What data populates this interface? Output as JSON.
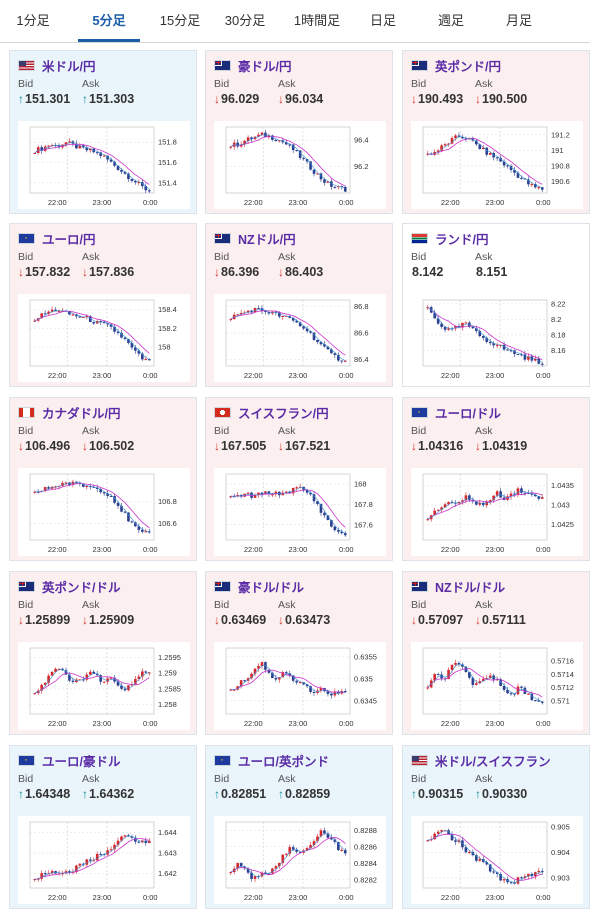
{
  "tabs": [
    {
      "label": "1分足",
      "active": false
    },
    {
      "label": "5分足",
      "active": true
    },
    {
      "label": "15分足",
      "active": false
    },
    {
      "label": "30分足",
      "active": false
    },
    {
      "label": "1時間足",
      "active": false
    },
    {
      "label": "日足",
      "active": false
    },
    {
      "label": "週足",
      "active": false
    },
    {
      "label": "月足",
      "active": false
    }
  ],
  "bid_label": "Bid",
  "ask_label": "Ask",
  "colors": {
    "up_bg": "#e9f4fb",
    "down_bg": "#fcefef",
    "pair_text": "#5b2ca6",
    "up_arrow": "#1a8c9c",
    "down_arrow": "#d8332e",
    "candle_up": "#d6262c",
    "candle_down": "#2a3f8f",
    "ma_line": "#cc33cc"
  },
  "cards": [
    {
      "pair": "米ドル/円",
      "flag": "us-flag",
      "state": "up",
      "bid": "151.301",
      "ask": "151.303",
      "bid_arrow": "↑",
      "ask_arrow": "↑",
      "chart_data": {
        "type": "candlestick",
        "x_ticks": [
          "22:00",
          "23:00",
          "0:00"
        ],
        "y_ticks": [
          "151.8",
          "151.6",
          "151.4"
        ],
        "ylim": [
          151.3,
          151.95
        ],
        "trend": [
          151.72,
          151.74,
          151.78,
          151.76,
          151.8,
          151.77,
          151.74,
          151.72,
          151.7,
          151.66,
          151.6,
          151.54,
          151.48,
          151.42,
          151.36,
          151.32
        ]
      }
    },
    {
      "pair": "豪ドル/円",
      "flag": "au-flag",
      "state": "down",
      "bid": "96.029",
      "ask": "96.034",
      "bid_arrow": "↓",
      "ask_arrow": "↓",
      "chart_data": {
        "type": "candlestick",
        "x_ticks": [
          "22:00",
          "23:00",
          "0:00"
        ],
        "y_ticks": [
          "96.4",
          "96.2"
        ],
        "ylim": [
          96.0,
          96.5
        ],
        "trend": [
          96.36,
          96.37,
          96.4,
          96.42,
          96.44,
          96.43,
          96.41,
          96.38,
          96.34,
          96.28,
          96.22,
          96.16,
          96.1,
          96.06,
          96.04,
          96.03
        ]
      }
    },
    {
      "pair": "英ポンド/円",
      "flag": "uk-flag",
      "state": "down",
      "bid": "190.493",
      "ask": "190.500",
      "bid_arrow": "↓",
      "ask_arrow": "↓",
      "chart_data": {
        "type": "candlestick",
        "x_ticks": [
          "22:00",
          "23:00",
          "0:00"
        ],
        "y_ticks": [
          "191.2",
          "191",
          "190.8",
          "190.6"
        ],
        "ylim": [
          190.45,
          191.3
        ],
        "trend": [
          190.95,
          190.98,
          191.05,
          191.12,
          191.18,
          191.16,
          191.1,
          191.02,
          190.95,
          190.9,
          190.82,
          190.74,
          190.66,
          190.58,
          190.52,
          190.5
        ]
      }
    },
    {
      "pair": "ユーロ/円",
      "flag": "eu-flag",
      "state": "down",
      "bid": "157.832",
      "ask": "157.836",
      "bid_arrow": "↓",
      "ask_arrow": "↓",
      "chart_data": {
        "type": "candlestick",
        "x_ticks": [
          "22:00",
          "23:00",
          "0:00"
        ],
        "y_ticks": [
          "158.4",
          "158.2",
          "158"
        ],
        "ylim": [
          157.8,
          158.5
        ],
        "trend": [
          158.3,
          158.34,
          158.38,
          158.4,
          158.36,
          158.34,
          158.32,
          158.3,
          158.26,
          158.24,
          158.2,
          158.14,
          158.06,
          157.96,
          157.88,
          157.84
        ]
      }
    },
    {
      "pair": "NZドル/円",
      "flag": "nz-flag",
      "state": "down",
      "bid": "86.396",
      "ask": "86.403",
      "bid_arrow": "↓",
      "ask_arrow": "↓",
      "chart_data": {
        "type": "candlestick",
        "x_ticks": [
          "22:00",
          "23:00",
          "0:00"
        ],
        "y_ticks": [
          "86.8",
          "86.6",
          "86.4"
        ],
        "ylim": [
          86.35,
          86.85
        ],
        "trend": [
          86.72,
          86.74,
          86.76,
          86.78,
          86.77,
          86.76,
          86.74,
          86.72,
          86.7,
          86.66,
          86.62,
          86.56,
          86.5,
          86.44,
          86.41,
          86.4
        ]
      }
    },
    {
      "pair": "ランド/円",
      "flag": "za-flag",
      "state": "flat",
      "bid": "8.142",
      "ask": "8.151",
      "bid_arrow": "",
      "ask_arrow": "",
      "chart_data": {
        "type": "candlestick",
        "x_ticks": [
          "22:00",
          "23:00",
          "0:00"
        ],
        "y_ticks": [
          "8.22",
          "8.2",
          "8.18",
          "8.16"
        ],
        "ylim": [
          8.14,
          8.225
        ],
        "trend": [
          8.215,
          8.2,
          8.19,
          8.185,
          8.19,
          8.195,
          8.185,
          8.178,
          8.172,
          8.168,
          8.162,
          8.158,
          8.155,
          8.15,
          8.147,
          8.145
        ]
      }
    },
    {
      "pair": "カナダドル/円",
      "flag": "ca-flag",
      "state": "down",
      "bid": "106.496",
      "ask": "106.502",
      "bid_arrow": "↓",
      "ask_arrow": "↓",
      "chart_data": {
        "type": "candlestick",
        "x_ticks": [
          "22:00",
          "23:00",
          "0:00"
        ],
        "y_ticks": [
          "106.8",
          "106.6"
        ],
        "ylim": [
          106.45,
          107.05
        ],
        "trend": [
          106.88,
          106.9,
          106.93,
          106.95,
          106.97,
          106.96,
          106.95,
          106.94,
          106.92,
          106.9,
          106.85,
          106.76,
          106.66,
          106.57,
          106.51,
          106.5
        ]
      }
    },
    {
      "pair": "スイスフラン/円",
      "flag": "ch-flag",
      "state": "down",
      "bid": "167.505",
      "ask": "167.521",
      "bid_arrow": "↓",
      "ask_arrow": "↓",
      "chart_data": {
        "type": "candlestick",
        "x_ticks": [
          "22:00",
          "23:00",
          "0:00"
        ],
        "y_ticks": [
          "168",
          "167.8",
          "167.6"
        ],
        "ylim": [
          167.45,
          168.1
        ],
        "trend": [
          167.86,
          167.88,
          167.9,
          167.88,
          167.9,
          167.92,
          167.9,
          167.92,
          167.94,
          167.96,
          167.92,
          167.84,
          167.72,
          167.6,
          167.53,
          167.51
        ]
      }
    },
    {
      "pair": "ユーロ/ドル",
      "flag": "eu-us-flag",
      "state": "down",
      "bid": "1.04316",
      "ask": "1.04319",
      "bid_arrow": "↓",
      "ask_arrow": "↓",
      "chart_data": {
        "type": "candlestick",
        "x_ticks": [
          "22:00",
          "23:00",
          "0:00"
        ],
        "y_ticks": [
          "1.0435",
          "1.043",
          "1.0425"
        ],
        "ylim": [
          1.0421,
          1.0438
        ],
        "trend": [
          1.0427,
          1.0428,
          1.043,
          1.0431,
          1.043,
          1.0432,
          1.0431,
          1.043,
          1.0431,
          1.0433,
          1.0432,
          1.0433,
          1.0434,
          1.0433,
          1.0432,
          1.0432
        ]
      }
    },
    {
      "pair": "英ポンド/ドル",
      "flag": "uk-us-flag",
      "state": "down",
      "bid": "1.25899",
      "ask": "1.25909",
      "bid_arrow": "↓",
      "ask_arrow": "↓",
      "chart_data": {
        "type": "candlestick",
        "x_ticks": [
          "22:00",
          "23:00",
          "0:00"
        ],
        "y_ticks": [
          "1.2595",
          "1.259",
          "1.2585",
          "1.258"
        ],
        "ylim": [
          1.2577,
          1.2598
        ],
        "trend": [
          1.2584,
          1.2586,
          1.259,
          1.2592,
          1.2589,
          1.2587,
          1.2588,
          1.259,
          1.2589,
          1.2587,
          1.2588,
          1.2586,
          1.2585,
          1.2587,
          1.259,
          1.259
        ]
      }
    },
    {
      "pair": "豪ドル/ドル",
      "flag": "au-us-flag",
      "state": "down",
      "bid": "0.63469",
      "ask": "0.63473",
      "bid_arrow": "↓",
      "ask_arrow": "↓",
      "chart_data": {
        "type": "candlestick",
        "x_ticks": [
          "22:00",
          "23:00",
          "0:00"
        ],
        "y_ticks": [
          "0.6355",
          "0.635",
          "0.6345"
        ],
        "ylim": [
          0.6342,
          0.6357
        ],
        "trend": [
          0.6347,
          0.6349,
          0.635,
          0.6352,
          0.6354,
          0.6351,
          0.635,
          0.6352,
          0.635,
          0.6349,
          0.6348,
          0.6347,
          0.6348,
          0.6346,
          0.6347,
          0.6347
        ]
      }
    },
    {
      "pair": "NZドル/ドル",
      "flag": "nz-us-flag",
      "state": "down",
      "bid": "0.57097",
      "ask": "0.57111",
      "bid_arrow": "↓",
      "ask_arrow": "↓",
      "chart_data": {
        "type": "candlestick",
        "x_ticks": [
          "22:00",
          "23:00",
          "0:00"
        ],
        "y_ticks": [
          "0.5716",
          "0.5714",
          "0.5712",
          "0.571"
        ],
        "ylim": [
          0.5708,
          0.5718
        ],
        "trend": [
          0.5712,
          0.5714,
          0.5713,
          0.5715,
          0.5716,
          0.5714,
          0.5712,
          0.5713,
          0.5714,
          0.5713,
          0.5712,
          0.5711,
          0.5712,
          0.5711,
          0.571,
          0.571
        ]
      }
    },
    {
      "pair": "ユーロ/豪ドル",
      "flag": "eu-au-flag",
      "state": "up",
      "bid": "1.64348",
      "ask": "1.64362",
      "bid_arrow": "↑",
      "ask_arrow": "↑",
      "chart_data": {
        "type": "candlestick",
        "x_ticks": [
          "22:00",
          "23:00",
          "0:00"
        ],
        "y_ticks": [
          "1.644",
          "1.643",
          "1.642"
        ],
        "ylim": [
          1.6413,
          1.6445
        ],
        "trend": [
          1.6418,
          1.6419,
          1.6421,
          1.642,
          1.6421,
          1.6422,
          1.6424,
          1.6426,
          1.6428,
          1.643,
          1.6433,
          1.6436,
          1.6438,
          1.6437,
          1.6435,
          1.6435
        ]
      }
    },
    {
      "pair": "ユーロ/英ポンド",
      "flag": "eu-uk-flag",
      "state": "up",
      "bid": "0.82851",
      "ask": "0.82859",
      "bid_arrow": "↑",
      "ask_arrow": "↑",
      "chart_data": {
        "type": "candlestick",
        "x_ticks": [
          "22:00",
          "23:00",
          "0:00"
        ],
        "y_ticks": [
          "0.8288",
          "0.8286",
          "0.8284",
          "0.8282"
        ],
        "ylim": [
          0.8281,
          0.8289
        ],
        "trend": [
          0.8283,
          0.8284,
          0.8283,
          0.8282,
          0.8283,
          0.8283,
          0.8284,
          0.8285,
          0.8286,
          0.8285,
          0.8286,
          0.8287,
          0.8288,
          0.8287,
          0.8286,
          0.8285
        ]
      }
    },
    {
      "pair": "米ドル/スイスフラン",
      "flag": "us-ch-flag",
      "state": "up",
      "bid": "0.90315",
      "ask": "0.90330",
      "bid_arrow": "↑",
      "ask_arrow": "↑",
      "chart_data": {
        "type": "candlestick",
        "x_ticks": [
          "22:00",
          "23:00",
          "0:00"
        ],
        "y_ticks": [
          "0.905",
          "0.904",
          "0.903"
        ],
        "ylim": [
          0.9026,
          0.9052
        ],
        "trend": [
          0.9045,
          0.9047,
          0.9049,
          0.9046,
          0.9044,
          0.9041,
          0.9038,
          0.9036,
          0.9034,
          0.9031,
          0.9029,
          0.9028,
          0.903,
          0.9031,
          0.9032,
          0.9032
        ]
      }
    }
  ]
}
